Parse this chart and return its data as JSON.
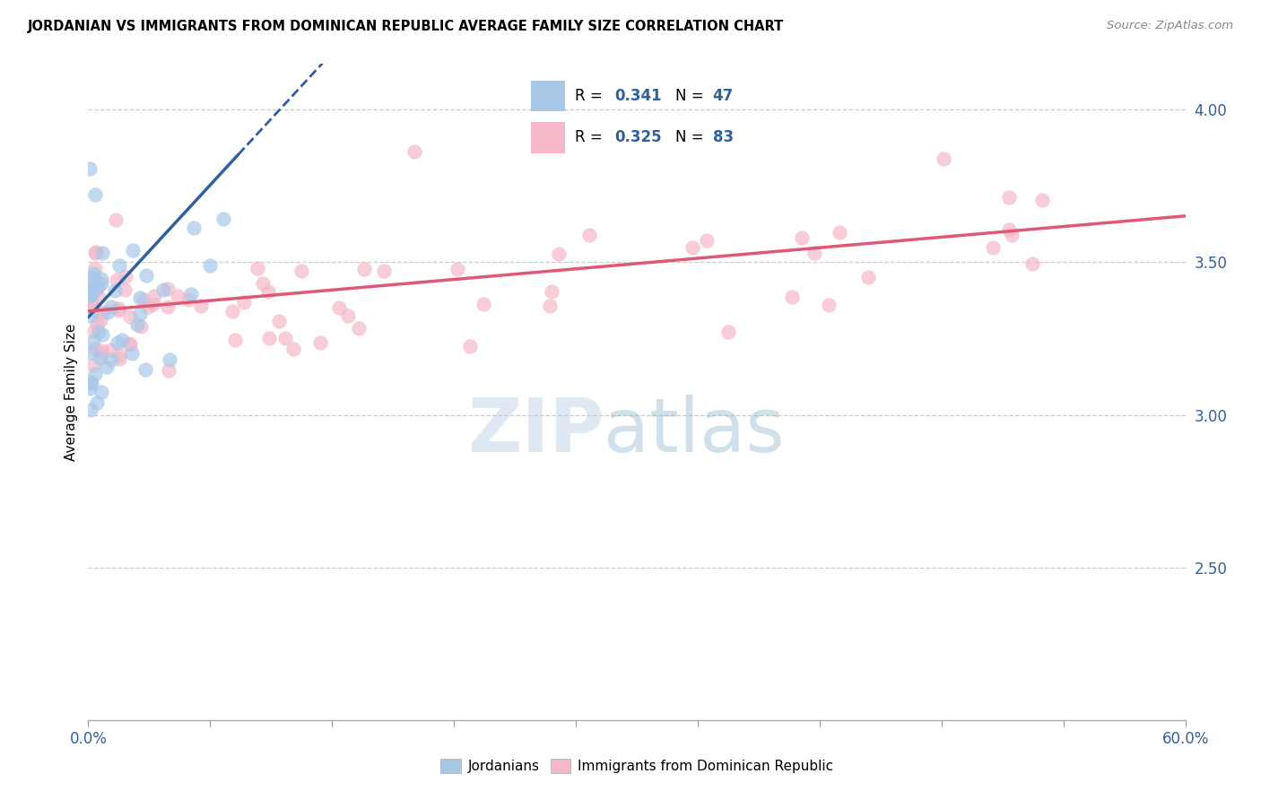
{
  "title": "JORDANIAN VS IMMIGRANTS FROM DOMINICAN REPUBLIC AVERAGE FAMILY SIZE CORRELATION CHART",
  "source": "Source: ZipAtlas.com",
  "ylabel": "Average Family Size",
  "right_yticks": [
    4.0,
    3.5,
    3.0,
    2.5
  ],
  "blue_R": "0.341",
  "blue_N": "47",
  "pink_R": "0.325",
  "pink_N": "83",
  "blue_color": "#a8c8e8",
  "pink_color": "#f5b8c8",
  "blue_line_color": "#3060a0",
  "pink_line_color": "#e05878",
  "xlim": [
    0.0,
    0.6
  ],
  "ylim": [
    2.0,
    4.15
  ],
  "legend_R_color": "#3060a0",
  "legend_N_color": "#3060a0",
  "xtick_labels": [
    "0.0%",
    "",
    "",
    "",
    "",
    "",
    "",
    "",
    "",
    "60.0%"
  ],
  "watermark_zip_color": "#c8dff0",
  "watermark_atlas_color": "#90b8d8"
}
